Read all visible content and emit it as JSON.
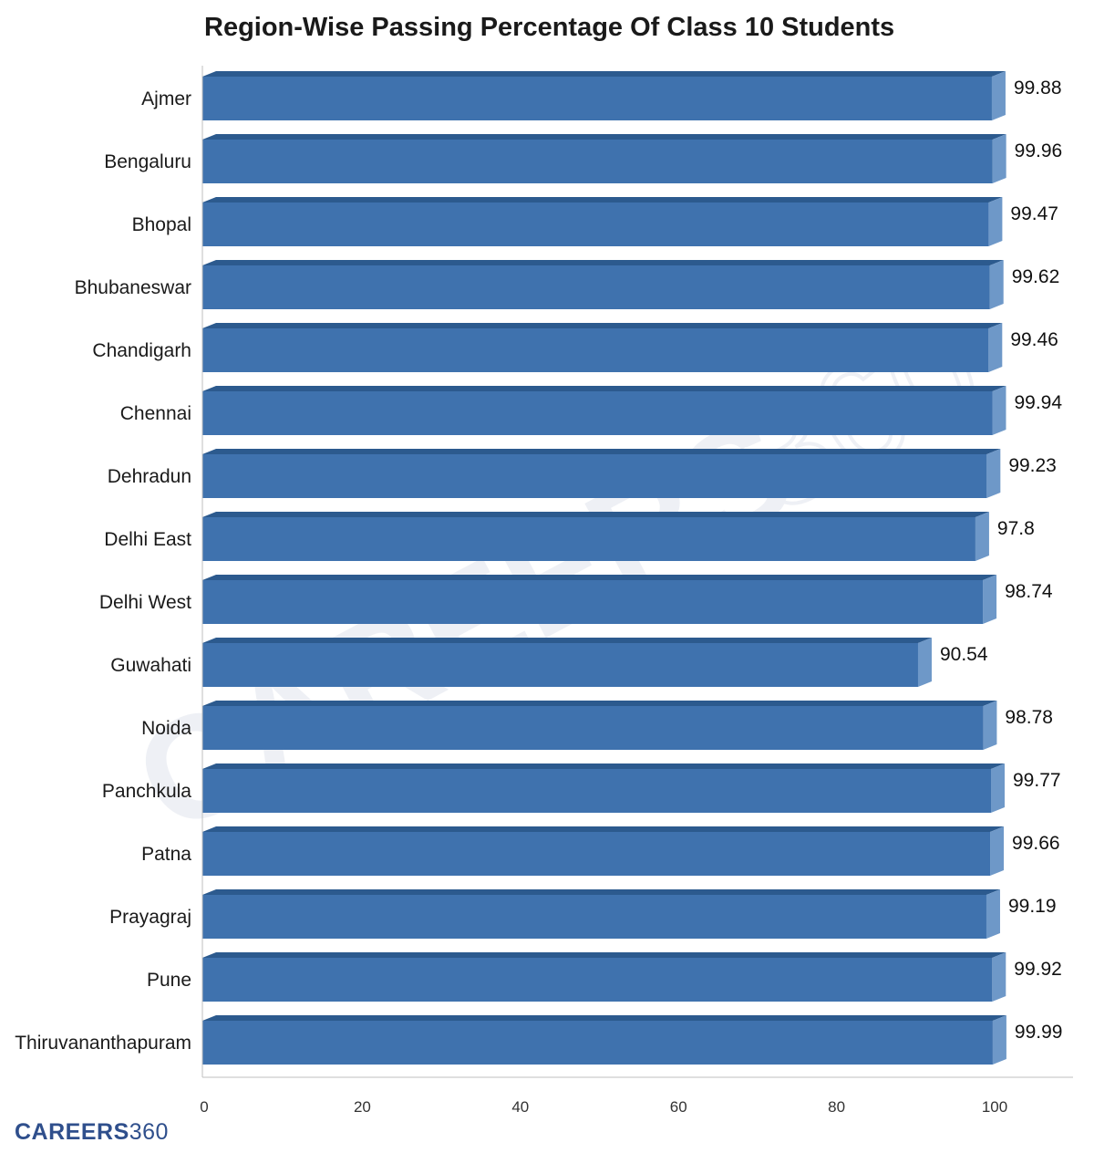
{
  "chart_data": {
    "type": "bar",
    "orientation": "horizontal",
    "title": "Region-Wise Passing Percentage Of Class 10 Students",
    "categories": [
      "Ajmer",
      "Bengaluru",
      "Bhopal",
      "Bhubaneswar",
      "Chandigarh",
      "Chennai",
      "Dehradun",
      "Delhi East",
      "Delhi West",
      "Guwahati",
      "Noida",
      "Panchkula",
      "Patna",
      "Prayagraj",
      "Pune",
      "Thiruvananthapuram"
    ],
    "values": [
      99.88,
      99.96,
      99.47,
      99.62,
      99.46,
      99.94,
      99.23,
      97.8,
      98.74,
      90.54,
      98.78,
      99.77,
      99.66,
      99.19,
      99.92,
      99.99
    ],
    "value_labels": [
      "99.88",
      "99.96",
      "99.47",
      "99.62",
      "99.46",
      "99.94",
      "99.23",
      "97.8",
      "98.74",
      "90.54",
      "98.78",
      "99.77",
      "99.66",
      "99.19",
      "99.92",
      "99.99"
    ],
    "xlim": [
      0,
      110
    ],
    "xticks": [
      0,
      20,
      40,
      60,
      80,
      100
    ],
    "bar_color": "#3f72ae",
    "bar_top_color": "#2c5a8e",
    "bar_side_color": "#6e98c8",
    "grid": false,
    "legend": "none"
  },
  "logo": {
    "bold": "CAREERS",
    "light": "360"
  },
  "watermark": {
    "bold": "CAREERS",
    "light": "360"
  }
}
